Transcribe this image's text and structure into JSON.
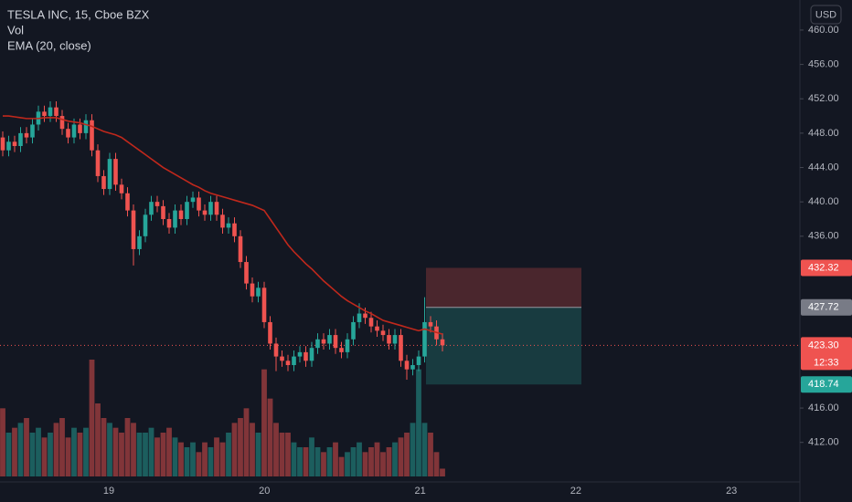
{
  "chart_data": {
    "type": "candlestick",
    "title": "TESLA INC, 15, Cboe BZX",
    "currency": "USD",
    "day_labels": [
      "19",
      "20",
      "21",
      "22",
      "23"
    ],
    "up_color": "#26a69a",
    "down_color": "#ef5350",
    "open": [
      447.5,
      446,
      447,
      446.5,
      448,
      447.5,
      449,
      450.5,
      450,
      451,
      450,
      448.5,
      447.5,
      449,
      448,
      449.5,
      446,
      443,
      441.5,
      445,
      442,
      441,
      439,
      434.5,
      436,
      438.5,
      440,
      439.5,
      438,
      437,
      439,
      438,
      440,
      440.5,
      439,
      438.5,
      440,
      438.5,
      437,
      437.5,
      436,
      433,
      430.5,
      429,
      430,
      426,
      423.5,
      422,
      421.5,
      421,
      422,
      422.5,
      421.5,
      423,
      424,
      423.5,
      424.5,
      423,
      422.5,
      424,
      426,
      427,
      426.5,
      425.5,
      425,
      424.5,
      423.5,
      424.5,
      421.5,
      420.5,
      421,
      422,
      426,
      425.5,
      424
    ],
    "high": [
      448.2,
      447.7,
      447.7,
      448.7,
      448.7,
      449.7,
      451.2,
      451.2,
      451.7,
      451.7,
      450.7,
      449.2,
      449.7,
      449.7,
      450.2,
      450.2,
      446.7,
      443.7,
      445.7,
      445.7,
      442.7,
      441.7,
      439.7,
      436.7,
      439.2,
      440.7,
      440.7,
      440.2,
      438.7,
      439.7,
      439.7,
      440.7,
      441.2,
      441.2,
      439.7,
      440.7,
      440.7,
      439.2,
      438.2,
      438.2,
      436.7,
      433.7,
      431.2,
      430.7,
      430.7,
      426.7,
      424.2,
      422.7,
      422.2,
      422.7,
      423.2,
      423.2,
      423.7,
      424.7,
      424.7,
      425.2,
      425.2,
      423.7,
      424.7,
      426.7,
      428.2,
      427.7,
      427.2,
      426.2,
      425.7,
      425.2,
      425.2,
      425.2,
      422.2,
      421.7,
      422.7,
      428.9,
      426.7,
      426.2,
      424.7
    ],
    "low": [
      445.3,
      445.3,
      445.8,
      445.8,
      446.8,
      446.8,
      448.3,
      449.3,
      449.3,
      449.3,
      447.8,
      446.8,
      446.8,
      447.3,
      447.3,
      445.3,
      442.3,
      440.8,
      440.8,
      441.3,
      440.3,
      438.3,
      432.6,
      433.8,
      435.3,
      437.8,
      438.8,
      437.3,
      436.3,
      436.3,
      437.3,
      437.3,
      439.3,
      438.3,
      437.8,
      437.8,
      437.8,
      436.3,
      436.3,
      435.3,
      432.3,
      429.8,
      428.3,
      428.3,
      425.3,
      422.8,
      420.3,
      420.8,
      420.3,
      420.3,
      421.3,
      420.8,
      420.8,
      422.3,
      422.8,
      422.8,
      422.3,
      421.8,
      421.8,
      423.3,
      425.3,
      425.8,
      424.8,
      424.3,
      423.8,
      422.8,
      422.8,
      420.8,
      419.3,
      419.8,
      420.3,
      421.3,
      424.8,
      423.3,
      422.6
    ],
    "close": [
      446,
      447,
      446.5,
      448,
      447.5,
      449,
      450.5,
      450,
      451,
      450,
      448.5,
      447.5,
      449,
      448,
      449.5,
      446,
      443,
      441.5,
      445,
      442,
      441,
      439,
      434.5,
      436,
      438.5,
      440,
      439.5,
      438,
      437,
      439,
      438,
      440,
      440.5,
      439,
      438.5,
      440,
      438.5,
      437,
      437.5,
      436,
      433,
      430.5,
      429,
      430,
      426,
      423.5,
      422,
      421.5,
      421,
      422,
      422.5,
      421.5,
      423,
      424,
      423.5,
      424.5,
      423,
      422.5,
      424,
      426,
      427,
      426.5,
      425.5,
      425,
      424.5,
      423.5,
      424.5,
      421.5,
      420.5,
      421,
      422,
      426,
      425.5,
      424,
      423.3
    ],
    "volume": {
      "name": "Vol",
      "values": [
        70,
        45,
        50,
        55,
        60,
        45,
        50,
        40,
        45,
        55,
        60,
        40,
        50,
        45,
        50,
        120,
        75,
        60,
        55,
        50,
        45,
        60,
        55,
        45,
        45,
        50,
        40,
        45,
        50,
        40,
        35,
        30,
        35,
        25,
        35,
        30,
        40,
        35,
        45,
        55,
        60,
        70,
        55,
        45,
        110,
        80,
        55,
        45,
        45,
        35,
        30,
        30,
        40,
        30,
        25,
        30,
        35,
        20,
        25,
        30,
        35,
        25,
        30,
        35,
        25,
        30,
        35,
        40,
        45,
        55,
        110,
        55,
        45,
        25,
        8
      ]
    },
    "ema": {
      "name": "EMA (20, close)",
      "color": "#c0281c",
      "values": [
        450,
        450,
        449.9,
        449.8,
        449.7,
        449.7,
        449.7,
        449.8,
        449.8,
        449.8,
        449.6,
        449.4,
        449.3,
        449.2,
        449,
        448.8,
        448.5,
        448.2,
        448,
        447.8,
        447.5,
        447,
        446.5,
        446,
        445.5,
        445,
        444.5,
        444,
        443.6,
        443.2,
        442.8,
        442.4,
        442,
        441.7,
        441.3,
        441,
        440.8,
        440.6,
        440.4,
        440.2,
        440,
        439.8,
        439.6,
        439.3,
        439,
        438,
        437,
        436,
        435,
        434.2,
        433.5,
        432.8,
        432.2,
        431.5,
        430.8,
        430.2,
        429.6,
        429,
        428.5,
        428.1,
        427.7,
        427.3,
        427,
        426.6,
        426.2,
        426,
        425.8,
        425.6,
        425.4,
        425.2,
        425,
        425.2,
        425,
        424.8,
        424.6
      ]
    },
    "ylim": [
      407.4,
      463.5
    ],
    "yticks": [
      {
        "value": 460,
        "label": "460.00"
      },
      {
        "value": 456,
        "label": "456.00"
      },
      {
        "value": 452,
        "label": "452.00"
      },
      {
        "value": 448,
        "label": "448.00"
      },
      {
        "value": 444,
        "label": "444.00"
      },
      {
        "value": 440,
        "label": "440.00"
      },
      {
        "value": 436,
        "label": "436.00"
      },
      {
        "value": 416,
        "label": "416.00"
      },
      {
        "value": 412,
        "label": "412.00"
      }
    ],
    "position": {
      "stop": 432.32,
      "entry": 427.72,
      "target": 418.74
    },
    "last_price": {
      "value": 423.3,
      "label": "423.30"
    },
    "countdown": "12:33"
  }
}
